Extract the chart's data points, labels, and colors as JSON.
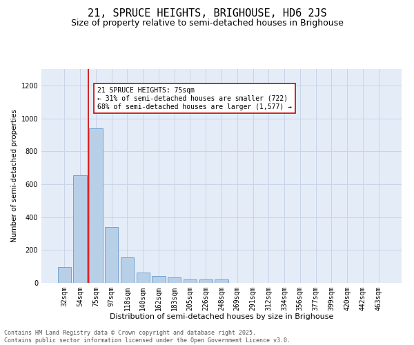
{
  "title1": "21, SPRUCE HEIGHTS, BRIGHOUSE, HD6 2JS",
  "title2": "Size of property relative to semi-detached houses in Brighouse",
  "xlabel": "Distribution of semi-detached houses by size in Brighouse",
  "ylabel": "Number of semi-detached properties",
  "categories": [
    "32sqm",
    "54sqm",
    "75sqm",
    "97sqm",
    "118sqm",
    "140sqm",
    "162sqm",
    "183sqm",
    "205sqm",
    "226sqm",
    "248sqm",
    "269sqm",
    "291sqm",
    "312sqm",
    "334sqm",
    "356sqm",
    "377sqm",
    "399sqm",
    "420sqm",
    "442sqm",
    "463sqm"
  ],
  "values": [
    95,
    655,
    940,
    340,
    155,
    65,
    40,
    35,
    20,
    20,
    20,
    0,
    0,
    0,
    0,
    0,
    0,
    0,
    0,
    0,
    0
  ],
  "bar_color": "#b8cfe8",
  "bar_edge_color": "#6699cc",
  "highlight_bar_index": 2,
  "highlight_line_color": "#cc0000",
  "annotation_text": "21 SPRUCE HEIGHTS: 75sqm\n← 31% of semi-detached houses are smaller (722)\n68% of semi-detached houses are larger (1,577) →",
  "annotation_box_color": "#cc0000",
  "ylim": [
    0,
    1300
  ],
  "yticks": [
    0,
    200,
    400,
    600,
    800,
    1000,
    1200
  ],
  "grid_color": "#c8d4e8",
  "background_color": "#e4ecf7",
  "footer_text": "Contains HM Land Registry data © Crown copyright and database right 2025.\nContains public sector information licensed under the Open Government Licence v3.0.",
  "title1_fontsize": 11,
  "title2_fontsize": 9,
  "xlabel_fontsize": 8,
  "ylabel_fontsize": 7.5,
  "tick_fontsize": 7,
  "annotation_fontsize": 7,
  "footer_fontsize": 6
}
